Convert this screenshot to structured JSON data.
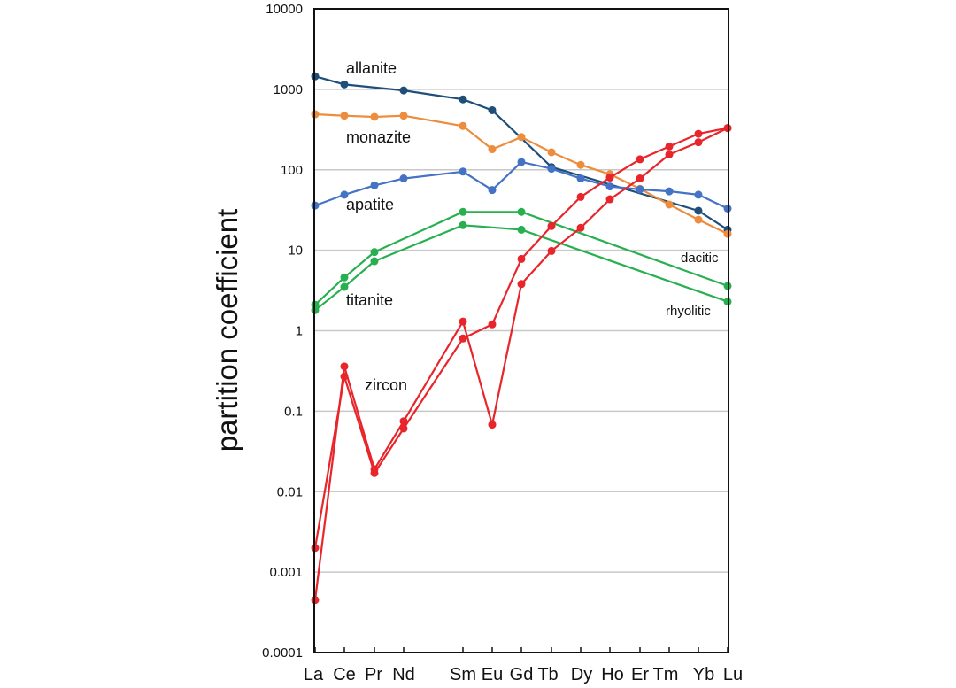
{
  "chart_data": {
    "type": "line",
    "ylabel": "partition coefficient",
    "yscale": "log",
    "ylim": [
      0.0001,
      10000
    ],
    "yticks": [
      "0.0001",
      "0.001",
      "0.01",
      "0.1",
      "1",
      "10",
      "100",
      "1000",
      "10000"
    ],
    "grid": true,
    "categories": [
      "La",
      "Ce",
      "Pr",
      "Nd",
      "Sm",
      "Eu",
      "Gd",
      "Tb",
      "Dy",
      "Ho",
      "Er",
      "Tm",
      "Yb",
      "Lu"
    ],
    "series": [
      {
        "key": "allanite",
        "name": "allanite",
        "color": "#1f4e79",
        "points": [
          [
            "La",
            1450
          ],
          [
            "Ce",
            1150
          ],
          [
            "Nd",
            970
          ],
          [
            "Sm",
            750
          ],
          [
            "Eu",
            550
          ],
          [
            "Tb",
            108
          ],
          [
            "Yb",
            31
          ],
          [
            "Lu",
            18
          ]
        ]
      },
      {
        "key": "monazite",
        "name": "monazite",
        "color": "#ed8c3c",
        "points": [
          [
            "La",
            490
          ],
          [
            "Ce",
            470
          ],
          [
            "Pr",
            455
          ],
          [
            "Nd",
            470
          ],
          [
            "Sm",
            350
          ],
          [
            "Eu",
            180
          ],
          [
            "Gd",
            255
          ],
          [
            "Tb",
            165
          ],
          [
            "Dy",
            115
          ],
          [
            "Ho",
            88
          ],
          [
            "Er",
            58
          ],
          [
            "Tm",
            37
          ],
          [
            "Yb",
            24
          ],
          [
            "Lu",
            16
          ]
        ]
      },
      {
        "key": "apatite",
        "name": "apatite",
        "color": "#4472c4",
        "points": [
          [
            "La",
            36
          ],
          [
            "Ce",
            49
          ],
          [
            "Pr",
            64
          ],
          [
            "Nd",
            78
          ],
          [
            "Sm",
            95
          ],
          [
            "Eu",
            56
          ],
          [
            "Gd",
            125
          ],
          [
            "Tb",
            103
          ],
          [
            "Dy",
            78
          ],
          [
            "Ho",
            62
          ],
          [
            "Er",
            57
          ],
          [
            "Tm",
            54
          ],
          [
            "Yb",
            49
          ],
          [
            "Lu",
            33
          ]
        ]
      },
      {
        "key": "titanite_dacitic",
        "name": "dacitic",
        "color": "#28b050",
        "points": [
          [
            "La",
            2.1
          ],
          [
            "Ce",
            4.6
          ],
          [
            "Pr",
            9.5
          ],
          [
            "Sm",
            30
          ],
          [
            "Gd",
            30
          ],
          [
            "Lu",
            3.6
          ]
        ]
      },
      {
        "key": "titanite_rhyolitic",
        "name": "rhyolitic",
        "color": "#28b050",
        "points": [
          [
            "La",
            1.8
          ],
          [
            "Ce",
            3.5
          ],
          [
            "Pr",
            7.3
          ],
          [
            "Sm",
            20.5
          ],
          [
            "Gd",
            18
          ],
          [
            "Lu",
            2.3
          ]
        ]
      },
      {
        "key": "zircon_a",
        "name": "zircon",
        "color": "#e8252a",
        "points": [
          [
            "La",
            0.00045
          ],
          [
            "Ce",
            0.36
          ],
          [
            "Pr",
            0.019
          ],
          [
            "Nd",
            0.075
          ],
          [
            "Sm",
            1.3
          ],
          [
            "Eu",
            0.068
          ],
          [
            "Gd",
            3.8
          ],
          [
            "Tb",
            9.8
          ],
          [
            "Dy",
            19
          ],
          [
            "Ho",
            43
          ],
          [
            "Er",
            78
          ],
          [
            "Tm",
            155
          ],
          [
            "Yb",
            220
          ],
          [
            "Lu",
            330
          ]
        ]
      },
      {
        "key": "zircon_b",
        "name": "zircon",
        "color": "#e8252a",
        "points": [
          [
            "La",
            0.002
          ],
          [
            "Ce",
            0.27
          ],
          [
            "Pr",
            0.017
          ],
          [
            "Nd",
            0.061
          ],
          [
            "Sm",
            0.8
          ],
          [
            "Eu",
            1.2
          ],
          [
            "Gd",
            7.8
          ],
          [
            "Tb",
            20
          ],
          [
            "Dy",
            46
          ],
          [
            "Ho",
            80
          ],
          [
            "Er",
            135
          ],
          [
            "Tm",
            195
          ],
          [
            "Yb",
            280
          ],
          [
            "Lu",
            330
          ]
        ]
      }
    ],
    "annotations": [
      {
        "key": "allanite",
        "text": "allanite"
      },
      {
        "key": "monazite",
        "text": "monazite"
      },
      {
        "key": "apatite",
        "text": "apatite"
      },
      {
        "key": "titanite",
        "text": "titanite"
      },
      {
        "key": "zircon",
        "text": "zircon"
      },
      {
        "key": "dacitic",
        "text": "dacitic"
      },
      {
        "key": "rhyolitic",
        "text": "rhyolitic"
      }
    ]
  }
}
